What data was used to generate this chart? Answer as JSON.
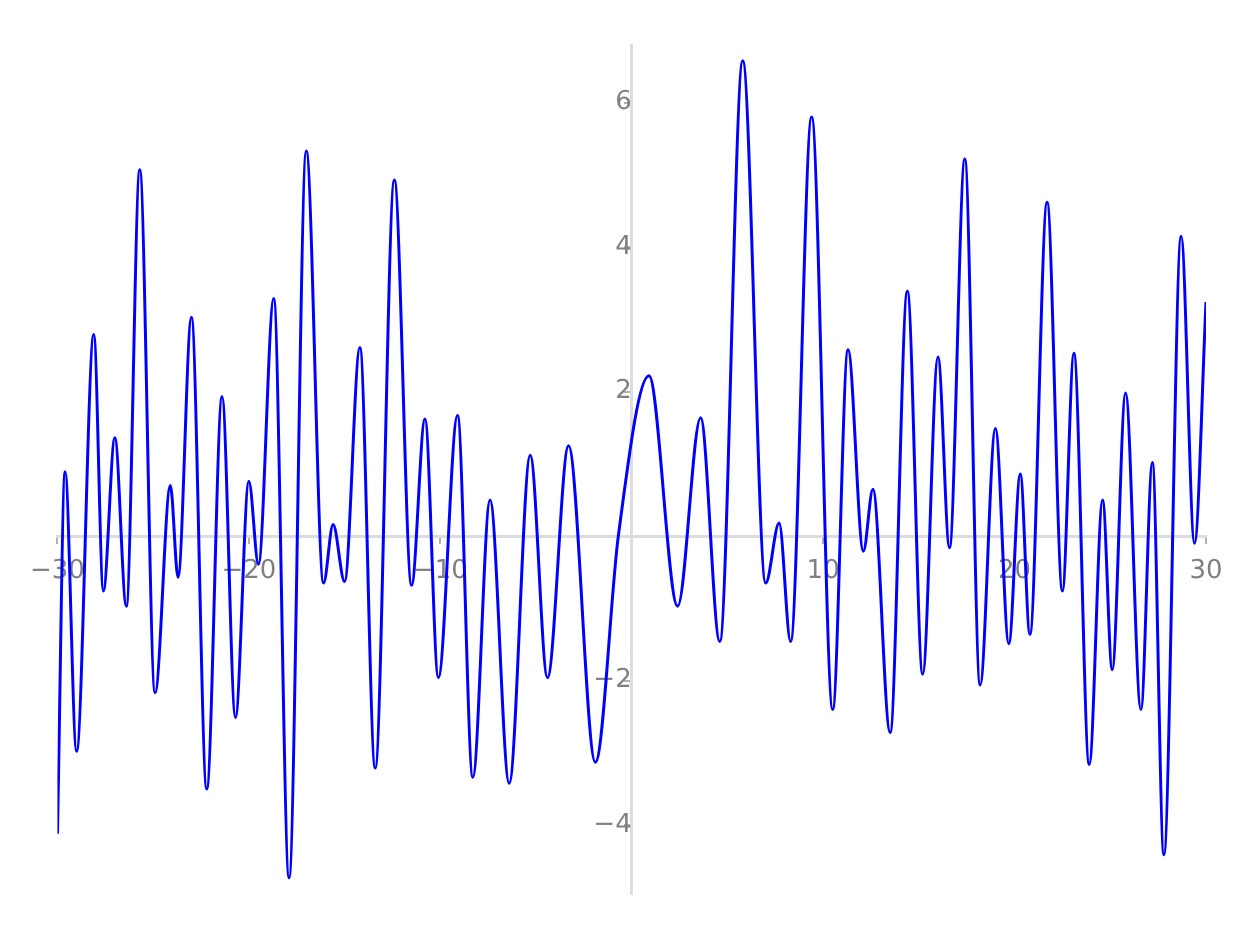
{
  "chart_data": {
    "type": "line",
    "x": [
      -30,
      -29.6,
      -29.0,
      -28.1,
      -27.6,
      -27.0,
      -26.4,
      -25.7,
      -24.9,
      -24.1,
      -23.7,
      -23.0,
      -22.2,
      -21.4,
      -20.7,
      -20.0,
      -19.5,
      -18.7,
      -17.9,
      -17.0,
      -16.1,
      -15.6,
      -15.0,
      -14.2,
      -13.4,
      -12.4,
      -11.5,
      -10.8,
      -10.1,
      -9.1,
      -8.3,
      -7.4,
      -6.4,
      -5.3,
      -4.4,
      -3.3,
      -1.9,
      -0.7,
      0.9,
      2.4,
      3.6,
      4.6,
      5.8,
      7.0,
      7.7,
      8.3,
      9.4,
      10.5,
      11.3,
      12.1,
      12.6,
      13.5,
      14.4,
      15.2,
      16.0,
      16.6,
      17.4,
      18.2,
      19.0,
      19.7,
      20.3,
      20.8,
      21.7,
      22.5,
      23.1,
      23.9,
      24.6,
      25.1,
      25.8,
      26.6,
      27.2,
      27.8,
      28.7,
      29.4,
      30
    ],
    "series": [
      {
        "color": "#0000ff",
        "values": [
          -4.12,
          0.89,
          -2.98,
          2.79,
          -0.76,
          1.36,
          -0.97,
          5.07,
          -2.17,
          0.7,
          -0.57,
          3.03,
          -3.5,
          1.93,
          -2.51,
          0.76,
          -0.39,
          3.29,
          -4.73,
          5.33,
          -0.65,
          0.16,
          -0.63,
          2.61,
          -3.21,
          4.93,
          -0.68,
          1.62,
          -1.96,
          1.67,
          -3.34,
          0.5,
          -3.42,
          1.12,
          -1.96,
          1.25,
          -3.13,
          0,
          2.22,
          -0.97,
          1.64,
          -1.46,
          6.58,
          -0.65,
          0.18,
          -1.46,
          5.8,
          -2.4,
          2.58,
          -0.21,
          0.65,
          -2.72,
          3.39,
          -1.91,
          2.48,
          -0.16,
          5.22,
          -2.06,
          1.49,
          -1.49,
          0.86,
          -1.36,
          4.62,
          -0.76,
          2.53,
          -3.16,
          0.5,
          -1.85,
          1.98,
          -2.4,
          1.02,
          -4.41,
          4.15,
          -0.1,
          3.24
        ]
      }
    ],
    "xlim": [
      -30,
      30
    ],
    "xticks": [
      -30,
      -20,
      -10,
      10,
      20,
      30
    ],
    "ylim": [
      -4.96,
      6.79
    ],
    "yticks": [
      -4,
      -2,
      2,
      4,
      6
    ],
    "line_style": "solid",
    "marker": "none",
    "legend": false
  }
}
